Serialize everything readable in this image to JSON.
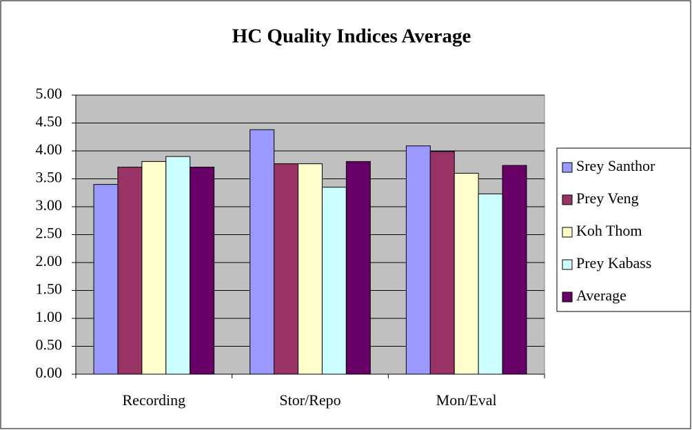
{
  "chart_data": {
    "type": "bar",
    "title": "HC Quality Indices Average",
    "categories": [
      "Recording",
      "Stor/Repo",
      "Mon/Eval"
    ],
    "series": [
      {
        "name": "Srey Santhor",
        "color": "#9999ff",
        "values": [
          3.4,
          4.38,
          4.09
        ]
      },
      {
        "name": "Prey Veng",
        "color": "#993366",
        "values": [
          3.71,
          3.77,
          3.99
        ]
      },
      {
        "name": "Koh Thom",
        "color": "#ffffcc",
        "values": [
          3.81,
          3.77,
          3.6
        ]
      },
      {
        "name": "Prey Kabass",
        "color": "#ccffff",
        "values": [
          3.9,
          3.35,
          3.23
        ]
      },
      {
        "name": "Average",
        "color": "#660066",
        "values": [
          3.71,
          3.81,
          3.74
        ]
      }
    ],
    "ylim": [
      0,
      5
    ],
    "yticks": [
      {
        "value": 0,
        "label": "0.00"
      },
      {
        "value": 0.5,
        "label": "0.50"
      },
      {
        "value": 1,
        "label": "1.00"
      },
      {
        "value": 1.5,
        "label": "1.50"
      },
      {
        "value": 2,
        "label": "2.00"
      },
      {
        "value": 2.5,
        "label": "2.50"
      },
      {
        "value": 3,
        "label": "3.00"
      },
      {
        "value": 3.5,
        "label": "3.50"
      },
      {
        "value": 4,
        "label": "4.00"
      },
      {
        "value": 4.5,
        "label": "4.50"
      },
      {
        "value": 5,
        "label": "5.00"
      }
    ],
    "grid": true,
    "legend": "right"
  }
}
